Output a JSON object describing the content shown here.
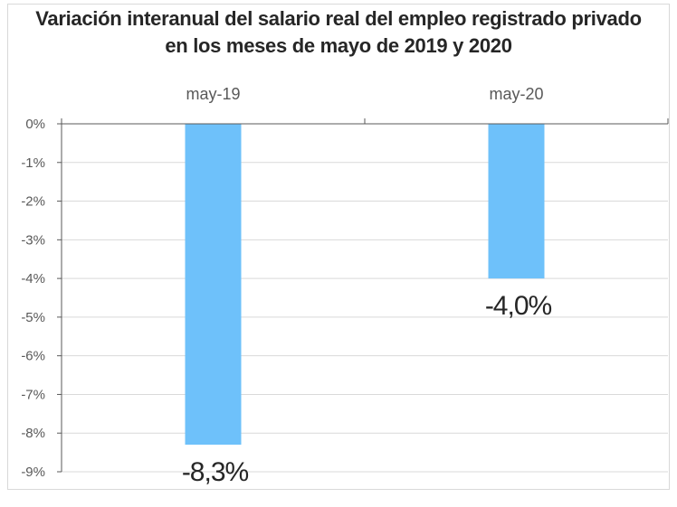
{
  "chart_data": {
    "type": "bar",
    "title_lines": [
      "Variación interanual del salario real del empleo registrado privado",
      "en los meses de mayo de 2019 y 2020"
    ],
    "categories": [
      "may-19",
      "may-20"
    ],
    "values": [
      -8.3,
      -4.0
    ],
    "data_labels": [
      "-8,3%",
      "-4,0%"
    ],
    "yticks": [
      "0%",
      "-1%",
      "-2%",
      "-3%",
      "-4%",
      "-5%",
      "-6%",
      "-7%",
      "-8%",
      "-9%"
    ],
    "ylim": [
      -9,
      0
    ],
    "xaxis_position": "top",
    "grid": true,
    "colors": {
      "bar": "#6EC1FA",
      "grid": "#d9d9d9",
      "axis": "#595959"
    }
  }
}
